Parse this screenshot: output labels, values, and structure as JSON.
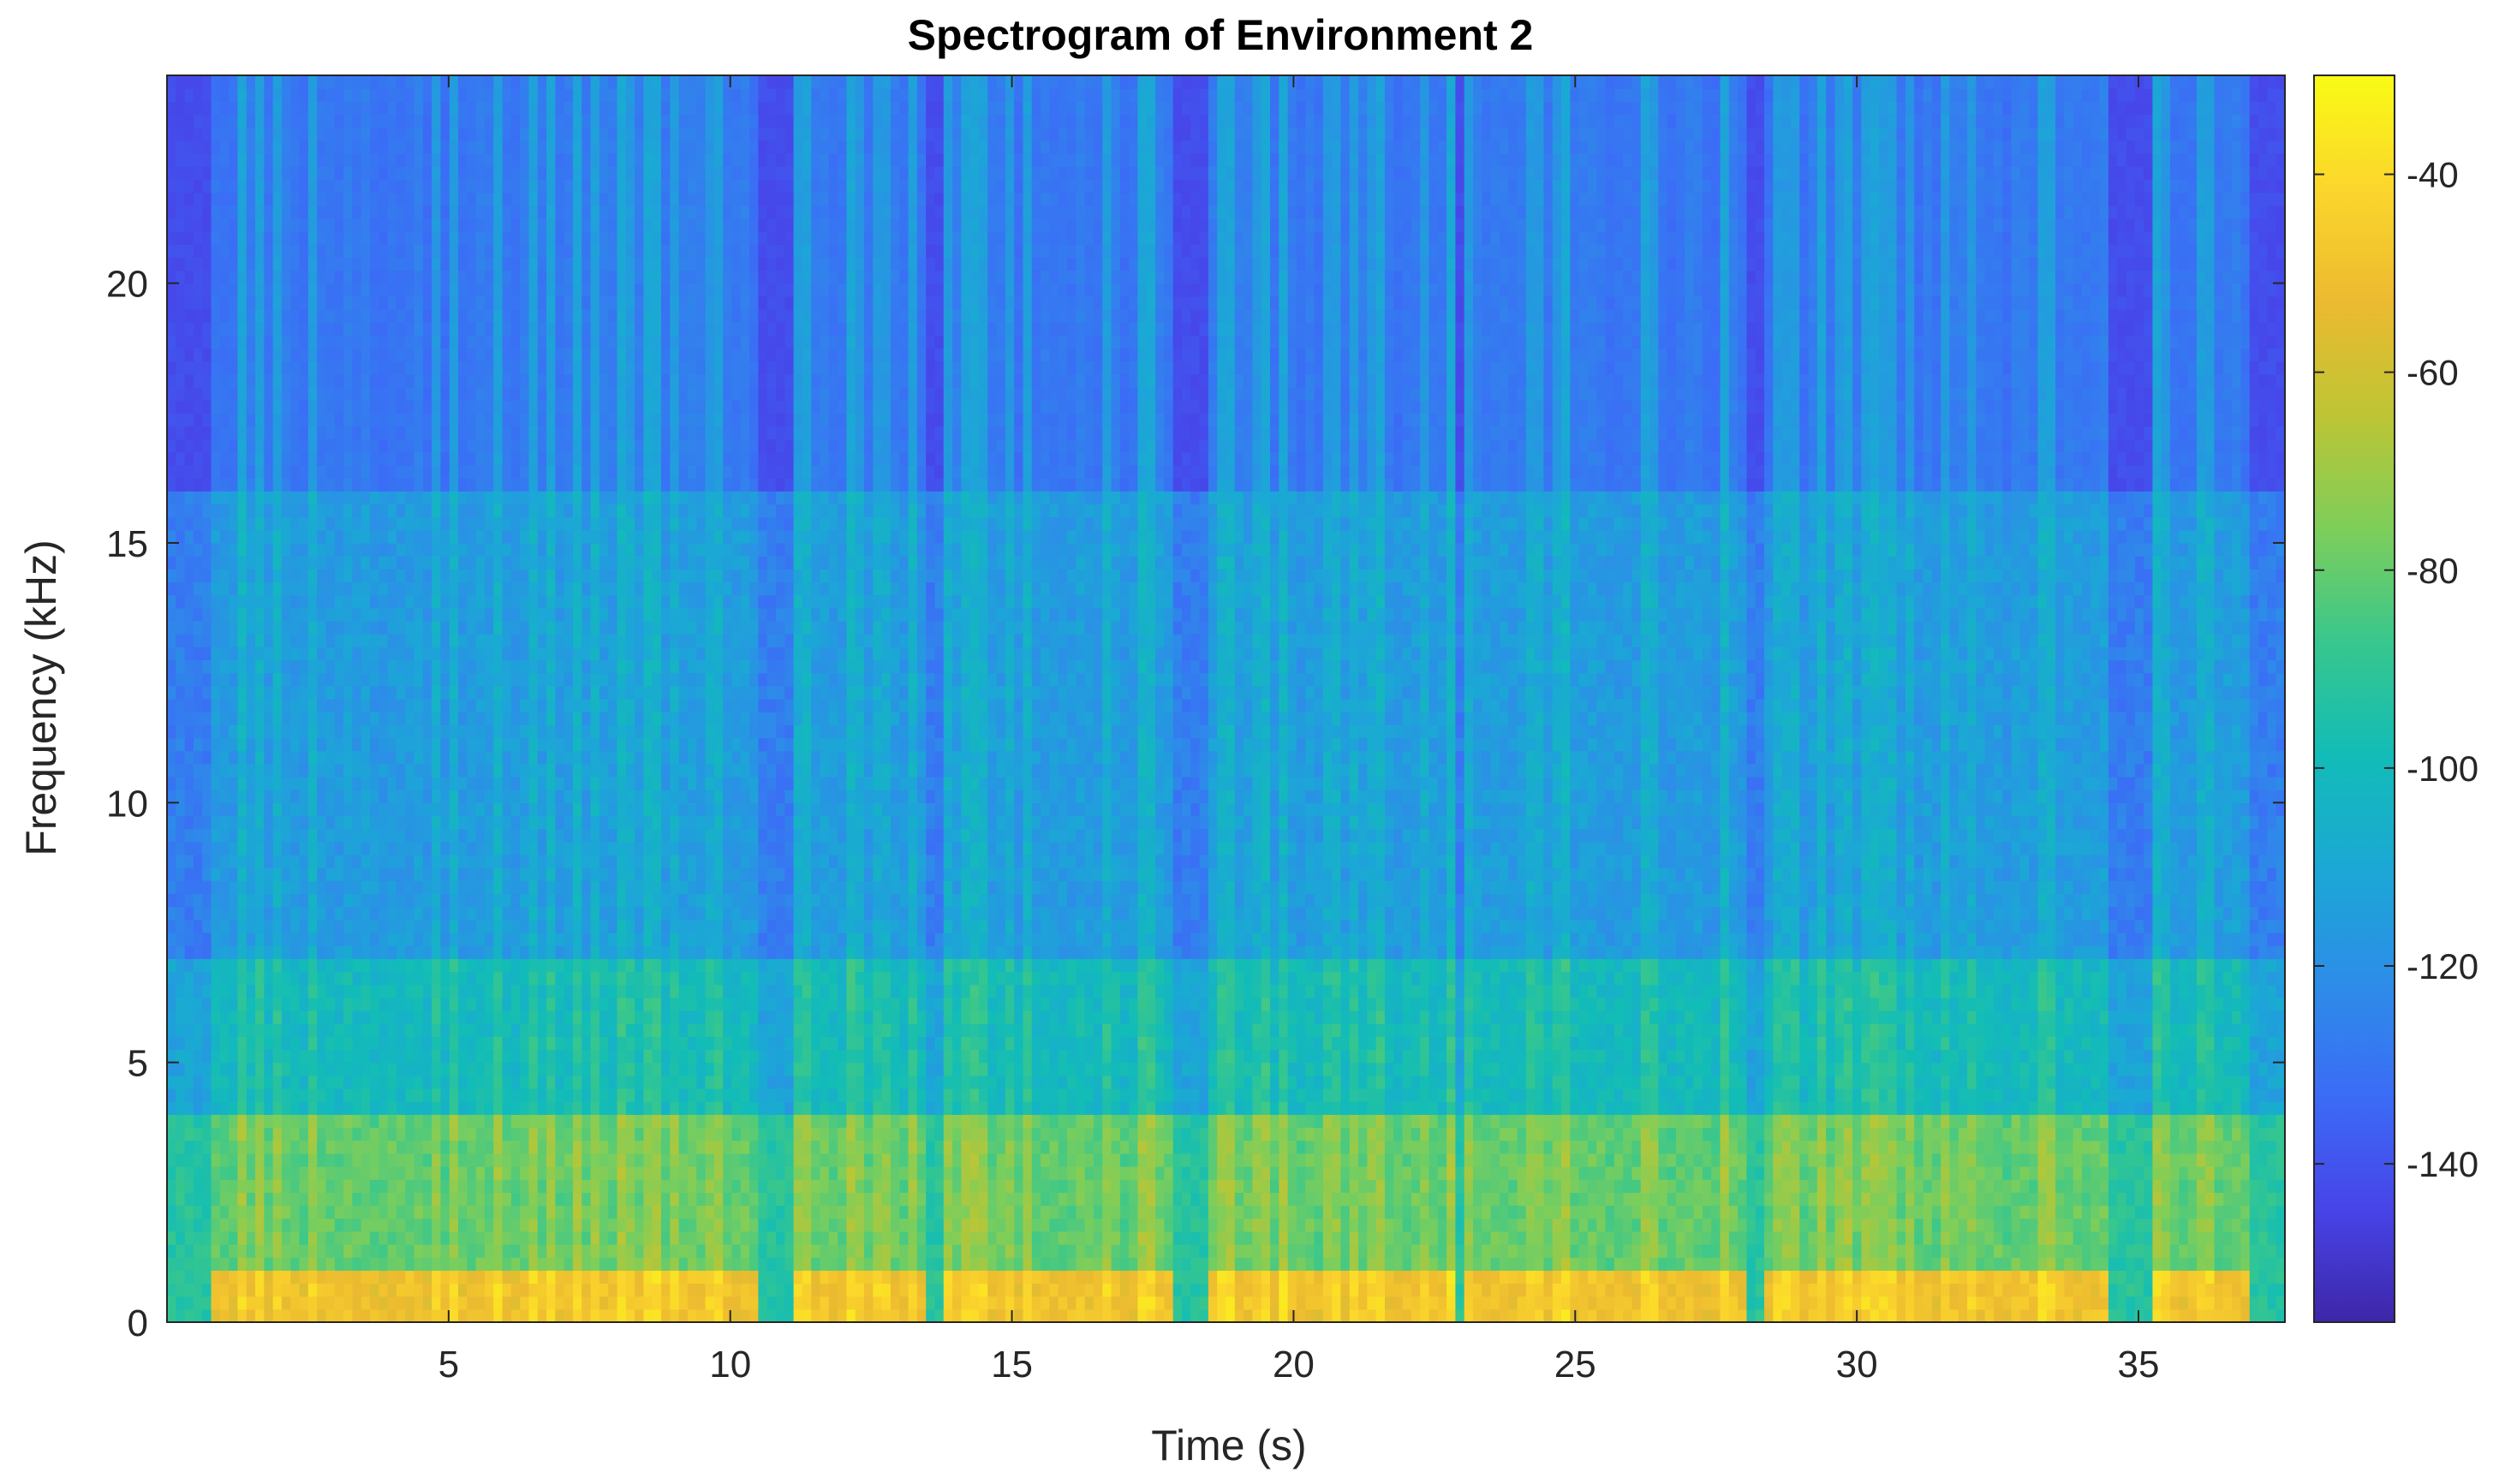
{
  "chart_data": {
    "type": "heatmap",
    "title": "Spectrogram of Environment 2",
    "xlabel": "Time (s)",
    "ylabel": "Frequency (kHz)",
    "xlim": [
      0,
      37.6
    ],
    "ylim": [
      0,
      24
    ],
    "x_ticks": [
      5,
      10,
      15,
      20,
      25,
      30,
      35
    ],
    "y_ticks": [
      0,
      5,
      10,
      15,
      20
    ],
    "colorbar": {
      "label": "",
      "ticks": [
        -40,
        -60,
        -80,
        -100,
        -120,
        -140
      ],
      "range": [
        -156,
        -30
      ],
      "colormap": "parula",
      "colormap_stops": [
        "#3e26a8",
        "#4744e8",
        "#3b6cf6",
        "#2d8de8",
        "#1ba8d5",
        "#12bcb7",
        "#38c78d",
        "#7ece5a",
        "#bdc534",
        "#ecba30",
        "#fbd62c",
        "#f9fb15"
      ]
    },
    "frequency_regions": [
      {
        "from_khz": 0,
        "to_khz": 1,
        "level_db": -50
      },
      {
        "from_khz": 1,
        "to_khz": 4,
        "level_db": -80
      },
      {
        "from_khz": 4,
        "to_khz": 7,
        "level_db": -100
      },
      {
        "from_khz": 7,
        "to_khz": 16,
        "level_db": -115
      },
      {
        "from_khz": 16,
        "to_khz": 24,
        "level_db": -128
      }
    ],
    "low_energy_time_spans_s": [
      [
        0,
        0.8
      ],
      [
        10.5,
        11.2
      ],
      [
        13.4,
        13.8
      ],
      [
        17.8,
        18.5
      ],
      [
        22.8,
        23.1
      ],
      [
        28.0,
        28.4
      ],
      [
        34.5,
        35.2
      ],
      [
        37.0,
        37.6
      ]
    ],
    "grid": false,
    "legend": "none"
  }
}
